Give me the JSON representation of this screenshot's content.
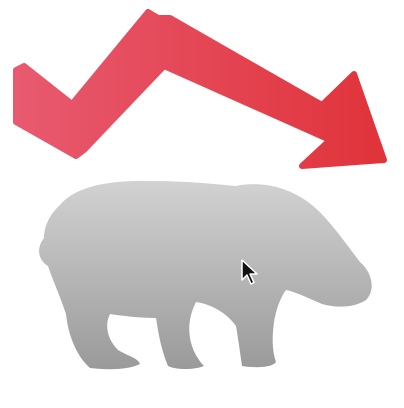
{
  "scene": {
    "background_color": "#ffffff",
    "arrow": {
      "icon": "downtrend-arrow-icon",
      "gradient_start": "#e85a70",
      "gradient_end": "#e0333a"
    },
    "bear": {
      "icon": "bear-icon",
      "gradient_top": "#d2d2d2",
      "gradient_bottom": "#9a9a9a"
    },
    "pointer": {
      "icon": "mouse-pointer-icon"
    }
  }
}
